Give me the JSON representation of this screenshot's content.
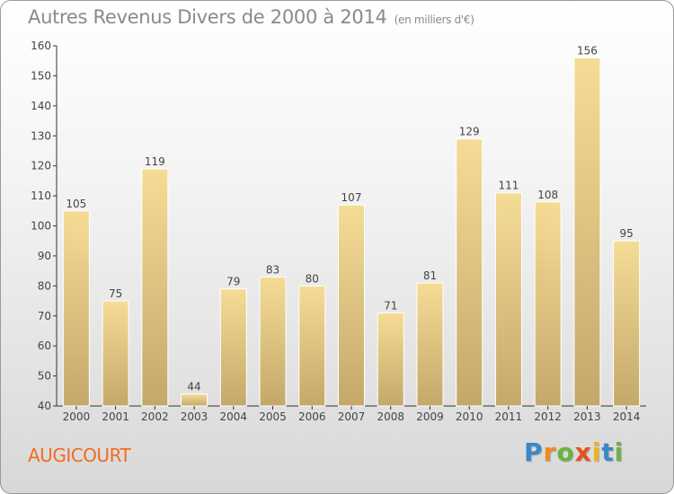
{
  "title": "Autres Revenus Divers de 2000 à 2014",
  "subtitle": "(en milliers d'€)",
  "commune": "AUGICOURT",
  "logo": {
    "letters": [
      "P",
      "r",
      "o",
      "x",
      "i",
      "t",
      "i"
    ],
    "colors": [
      "#3a88c8",
      "#f08a1e",
      "#6bb43f",
      "#e8501e",
      "#f2b21a",
      "#3a88c8",
      "#6bb43f"
    ]
  },
  "colors": {
    "bar_top": "#f5dc96",
    "bar_bottom": "#c4a86a",
    "title": "#8a8a8a",
    "commune": "#f26b21"
  },
  "chart_data": {
    "type": "bar",
    "categories": [
      "2000",
      "2001",
      "2002",
      "2003",
      "2004",
      "2005",
      "2006",
      "2007",
      "2008",
      "2009",
      "2010",
      "2011",
      "2012",
      "2013",
      "2014"
    ],
    "values": [
      105,
      75,
      119,
      44,
      79,
      83,
      80,
      107,
      71,
      81,
      129,
      111,
      108,
      156,
      95
    ],
    "title": "Autres Revenus Divers de 2000 à 2014",
    "subtitle": "(en milliers d'€)",
    "xlabel": "",
    "ylabel": "",
    "ylim": [
      40,
      160
    ],
    "yticks": [
      40,
      50,
      60,
      70,
      80,
      90,
      100,
      110,
      120,
      130,
      140,
      150,
      160
    ],
    "grid": false,
    "legend": "none"
  }
}
